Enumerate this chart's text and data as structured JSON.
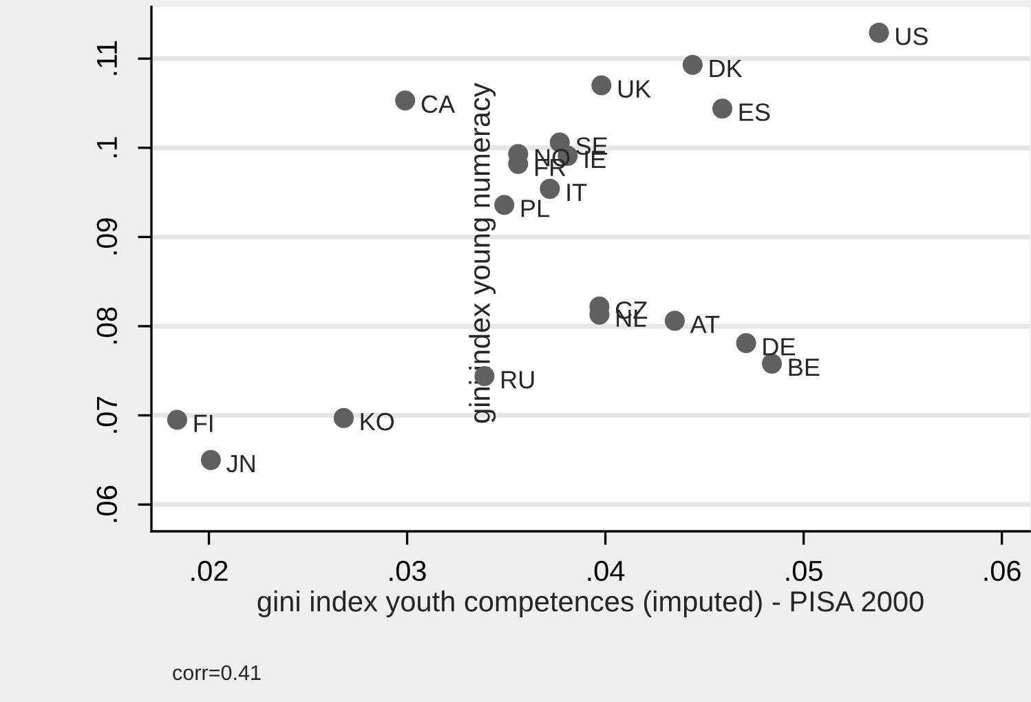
{
  "chart_data": {
    "type": "scatter",
    "xlabel": "gini index youth competences (imputed) - PISA 2000",
    "ylabel": "gini index young numeracy",
    "x": [
      0.0184,
      0.0201,
      0.0268,
      0.0299,
      0.0339,
      0.0349,
      0.0356,
      0.0356,
      0.0377,
      0.0381,
      0.0372,
      0.0398,
      0.0444,
      0.0459,
      0.0538,
      0.0397,
      0.0397,
      0.0435,
      0.0471,
      0.0484
    ],
    "series": [
      {
        "color": "#606060",
        "values": [
          0.0695,
          0.065,
          0.0697,
          0.1053,
          0.0744,
          0.0936,
          0.0993,
          0.0982,
          0.1006,
          0.0991,
          0.0954,
          0.107,
          0.1093,
          0.1044,
          0.1129,
          0.0822,
          0.0813,
          0.0806,
          0.0781,
          0.0758
        ]
      }
    ],
    "annotations": [
      {
        "text": "FI",
        "x": 0.0184,
        "y": 0.0695
      },
      {
        "text": "JN",
        "x": 0.0201,
        "y": 0.065
      },
      {
        "text": "KO",
        "x": 0.0268,
        "y": 0.0697
      },
      {
        "text": "CA",
        "x": 0.0299,
        "y": 0.1053
      },
      {
        "text": "RU",
        "x": 0.0339,
        "y": 0.0744
      },
      {
        "text": "PL",
        "x": 0.0349,
        "y": 0.0936
      },
      {
        "text": "NO",
        "x": 0.0356,
        "y": 0.0993
      },
      {
        "text": "FR",
        "x": 0.0356,
        "y": 0.0982
      },
      {
        "text": "SE",
        "x": 0.0377,
        "y": 0.1006
      },
      {
        "text": "IE",
        "x": 0.0381,
        "y": 0.0991
      },
      {
        "text": "IT",
        "x": 0.0372,
        "y": 0.0954
      },
      {
        "text": "UK",
        "x": 0.0398,
        "y": 0.107
      },
      {
        "text": "DK",
        "x": 0.0444,
        "y": 0.1093
      },
      {
        "text": "ES",
        "x": 0.0459,
        "y": 0.1044
      },
      {
        "text": "US",
        "x": 0.0538,
        "y": 0.1129
      },
      {
        "text": "CZ",
        "x": 0.0397,
        "y": 0.0822
      },
      {
        "text": "NL",
        "x": 0.0397,
        "y": 0.0813
      },
      {
        "text": "AT",
        "x": 0.0435,
        "y": 0.0806
      },
      {
        "text": "DE",
        "x": 0.0471,
        "y": 0.0781
      },
      {
        "text": "BE",
        "x": 0.0484,
        "y": 0.0758
      },
      "corr=0.41"
    ],
    "xlim": [
      0.0171,
      0.0614
    ],
    "ylim": [
      0.057,
      0.1158
    ],
    "xticks": [
      {
        "value": 0.02,
        "label": ".02"
      },
      {
        "value": 0.03,
        "label": ".03"
      },
      {
        "value": 0.04,
        "label": ".04"
      },
      {
        "value": 0.05,
        "label": ".05"
      },
      {
        "value": 0.06,
        "label": ".06"
      }
    ],
    "yticks": [
      {
        "value": 0.06,
        "label": ".06"
      },
      {
        "value": 0.07,
        "label": ".07"
      },
      {
        "value": 0.08,
        "label": ".08"
      },
      {
        "value": 0.09,
        "label": ".09"
      },
      {
        "value": 0.1,
        "label": ".1"
      },
      {
        "value": 0.11,
        "label": ".11"
      }
    ],
    "grid": "y",
    "marker": "circle"
  }
}
